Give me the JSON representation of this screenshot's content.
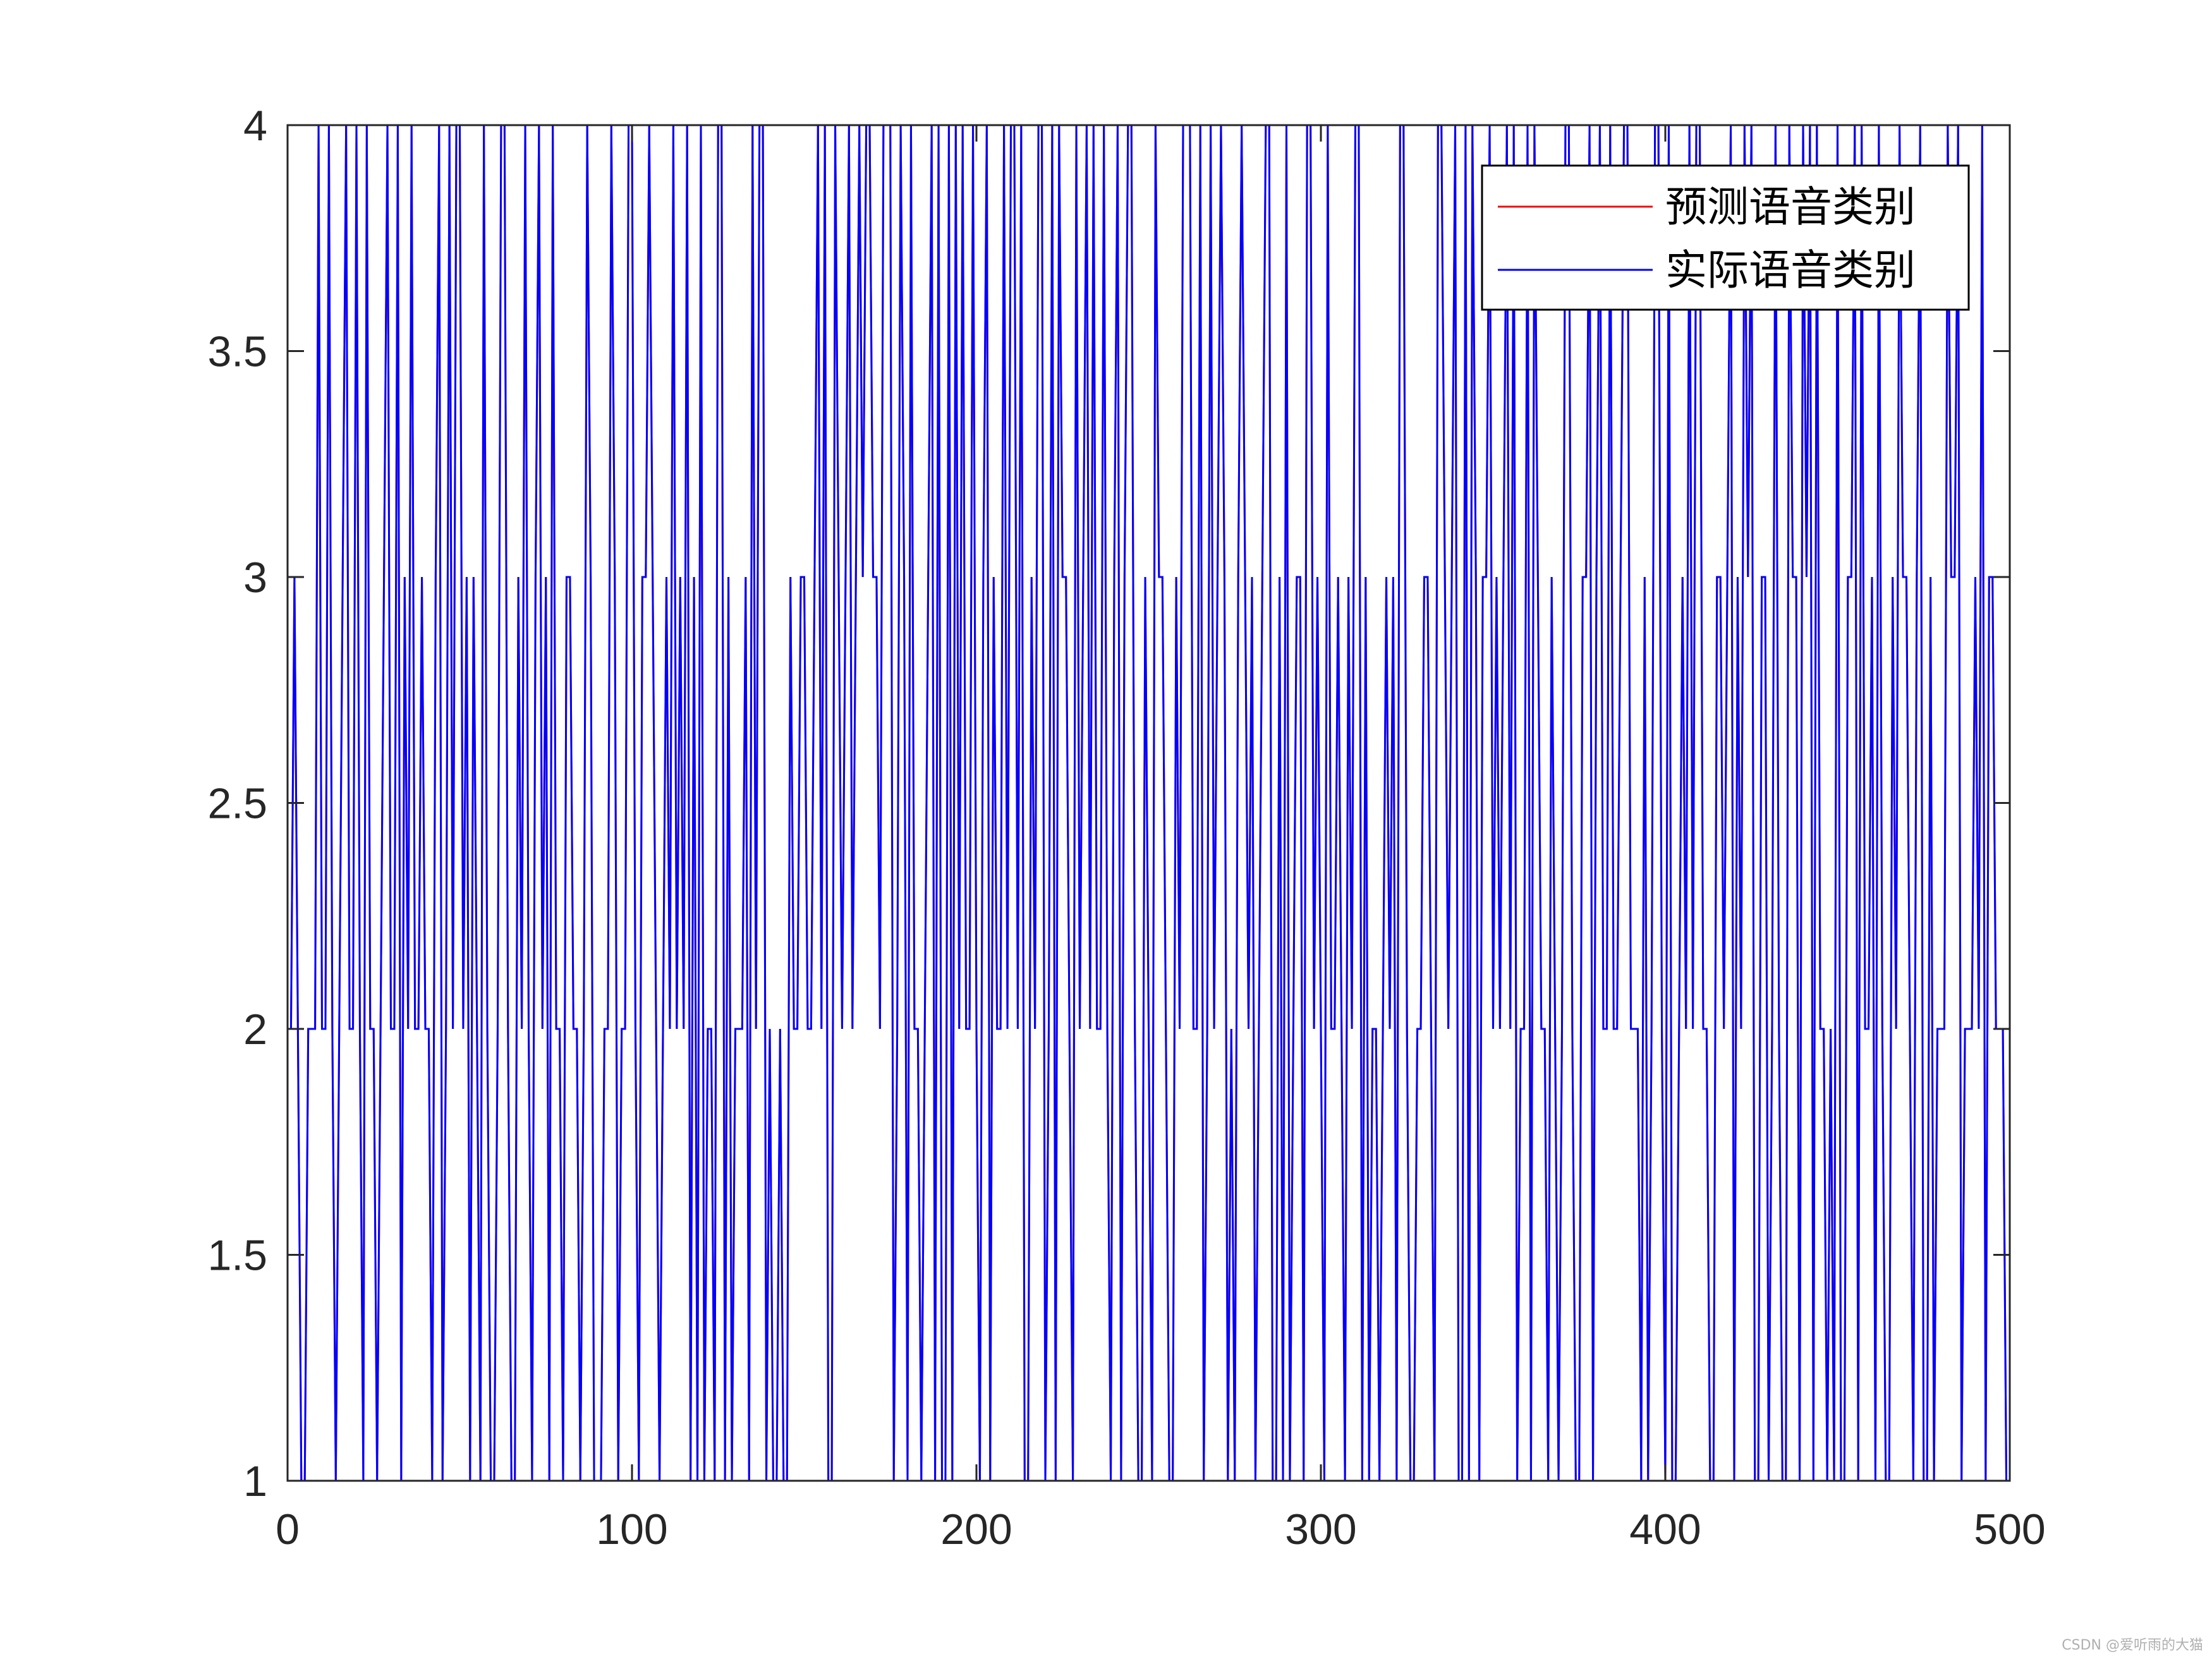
{
  "watermark": "CSDN @爱听雨的大猫",
  "chart_data": {
    "type": "line",
    "x_range": [
      0,
      500
    ],
    "y_range": [
      1,
      4
    ],
    "x_ticks": [
      "0",
      "100",
      "200",
      "300",
      "400",
      "500"
    ],
    "y_ticks": [
      "1",
      "1.5",
      "2",
      "2.5",
      "3",
      "3.5",
      "4"
    ],
    "grid": false,
    "legend_position": "top-right",
    "colors": {
      "predicted": "#ff0000",
      "actual": "#0000ff",
      "axes": "#262626"
    },
    "series": [
      {
        "name": "预测语音类别",
        "color": "#ff0000",
        "values": [
          2,
          3,
          2,
          1,
          1,
          2,
          2,
          2,
          4,
          2,
          2,
          4,
          2,
          1,
          2,
          3,
          4,
          2,
          2,
          4,
          2,
          1,
          4,
          2,
          2,
          1,
          2,
          3,
          4,
          2,
          2,
          4,
          1,
          3,
          2,
          4,
          2,
          2,
          3,
          2,
          2,
          1,
          3,
          4,
          1,
          2,
          4,
          2,
          4,
          4,
          2,
          3,
          1,
          3,
          2,
          1,
          4,
          2,
          1,
          1,
          2,
          4,
          4,
          2,
          1,
          1,
          3,
          2,
          4,
          2,
          1,
          3,
          4,
          2,
          3,
          1,
          4,
          2,
          2,
          1,
          3,
          3,
          2,
          2,
          1,
          2,
          4,
          3,
          1,
          1,
          1,
          2,
          2,
          4,
          3,
          1,
          2,
          2,
          4,
          4,
          2,
          1,
          3,
          3,
          4,
          3,
          2,
          1,
          2,
          3,
          2,
          4,
          2,
          3,
          2,
          4,
          1,
          3,
          1,
          4,
          1,
          2,
          2,
          1,
          4,
          4,
          1,
          3,
          1,
          2,
          2,
          2,
          3,
          1,
          4,
          2,
          4,
          4,
          1,
          2,
          1,
          1,
          2,
          1,
          1,
          3,
          2,
          2,
          3,
          3,
          2,
          2,
          3,
          4,
          2,
          4,
          1,
          1,
          4,
          3,
          2,
          3,
          4,
          2,
          3,
          4,
          3,
          4,
          4,
          3,
          3,
          2,
          4,
          4,
          4,
          1,
          2,
          4,
          3,
          1,
          4,
          2,
          2,
          1,
          2,
          3,
          4,
          1,
          4,
          1,
          1,
          4,
          1,
          4,
          2,
          4,
          2,
          2,
          4,
          2,
          1,
          3,
          4,
          1,
          3,
          2,
          2,
          4,
          2,
          4,
          4,
          2,
          4,
          1,
          1,
          3,
          2,
          4,
          4,
          1,
          2,
          4,
          1,
          4,
          3,
          3,
          2,
          1,
          4,
          2,
          3,
          4,
          2,
          4,
          2,
          2,
          4,
          2,
          1,
          3,
          4,
          1,
          3,
          4,
          4,
          2,
          1,
          1,
          3,
          2,
          1,
          4,
          3,
          3,
          2,
          1,
          1,
          3,
          2,
          4,
          4,
          4,
          2,
          2,
          4,
          1,
          2,
          4,
          2,
          3,
          4,
          3,
          1,
          2,
          1,
          3,
          4,
          3,
          2,
          3,
          1,
          2,
          3,
          4,
          4,
          1,
          1,
          3,
          1,
          4,
          1,
          2,
          3,
          3,
          1,
          4,
          4,
          2,
          3,
          2,
          1,
          4,
          2,
          2,
          3,
          2,
          1,
          3,
          2,
          4,
          4,
          1,
          3,
          1,
          2,
          2,
          1,
          2,
          3,
          2,
          3,
          1,
          4,
          4,
          2,
          1,
          1,
          2,
          2,
          3,
          3,
          2,
          1,
          4,
          4,
          3,
          2,
          3,
          4,
          1,
          1,
          4,
          1,
          4,
          3,
          1,
          3,
          3,
          4,
          2,
          3,
          2,
          3,
          4,
          2,
          4,
          1,
          2,
          2,
          4,
          1,
          4,
          3,
          2,
          2,
          1,
          3,
          2,
          1,
          2,
          4,
          4,
          2,
          1,
          1,
          3,
          3,
          4,
          1,
          3,
          4,
          2,
          2,
          4,
          2,
          2,
          3,
          4,
          4,
          2,
          2,
          2,
          1,
          3,
          1,
          2,
          4,
          4,
          2,
          1,
          4,
          1,
          1,
          2,
          3,
          2,
          4,
          2,
          4,
          4,
          2,
          2,
          1,
          1,
          3,
          3,
          2,
          3,
          4,
          1,
          3,
          2,
          4,
          3,
          4,
          1,
          1,
          3,
          3,
          1,
          2,
          4,
          2,
          1,
          1,
          4,
          3,
          3,
          1,
          4,
          3,
          4,
          1,
          4,
          2,
          2,
          1,
          2,
          1,
          4,
          1,
          1,
          3,
          3,
          4,
          1,
          4,
          2,
          2,
          3,
          1,
          4,
          2,
          1,
          1,
          3,
          2,
          4,
          3,
          3,
          2,
          1,
          3,
          4,
          1,
          1,
          3,
          1,
          2,
          2,
          2,
          4,
          3,
          3,
          4,
          1,
          2,
          2,
          2,
          3,
          2,
          4,
          1,
          3,
          3,
          2,
          2,
          2,
          1
        ]
      },
      {
        "name": "实际语音类别",
        "color": "#0000ff",
        "values": [
          2,
          3,
          2,
          1,
          1,
          2,
          2,
          2,
          4,
          2,
          2,
          4,
          2,
          1,
          2,
          3,
          4,
          2,
          2,
          4,
          2,
          1,
          4,
          2,
          2,
          1,
          2,
          3,
          4,
          2,
          2,
          4,
          1,
          3,
          2,
          4,
          2,
          2,
          3,
          2,
          2,
          1,
          3,
          4,
          1,
          2,
          4,
          2,
          4,
          4,
          2,
          3,
          1,
          3,
          2,
          1,
          4,
          2,
          1,
          1,
          2,
          4,
          4,
          2,
          1,
          1,
          3,
          2,
          4,
          2,
          1,
          3,
          4,
          2,
          3,
          1,
          4,
          2,
          2,
          1,
          3,
          3,
          2,
          2,
          1,
          2,
          4,
          3,
          1,
          1,
          1,
          2,
          2,
          4,
          3,
          1,
          2,
          2,
          4,
          4,
          2,
          1,
          3,
          3,
          4,
          3,
          2,
          1,
          2,
          3,
          2,
          4,
          2,
          3,
          2,
          4,
          1,
          3,
          1,
          4,
          1,
          2,
          2,
          1,
          4,
          4,
          1,
          3,
          1,
          2,
          2,
          2,
          3,
          1,
          4,
          2,
          4,
          4,
          1,
          2,
          1,
          1,
          2,
          1,
          1,
          3,
          2,
          2,
          3,
          3,
          2,
          2,
          3,
          4,
          2,
          4,
          1,
          1,
          4,
          3,
          2,
          3,
          4,
          2,
          3,
          4,
          3,
          4,
          4,
          3,
          3,
          2,
          4,
          4,
          4,
          1,
          2,
          4,
          3,
          1,
          4,
          2,
          2,
          1,
          2,
          3,
          4,
          1,
          4,
          1,
          1,
          4,
          1,
          4,
          2,
          4,
          2,
          2,
          4,
          2,
          1,
          3,
          4,
          1,
          3,
          2,
          2,
          4,
          2,
          4,
          4,
          2,
          4,
          1,
          1,
          3,
          2,
          4,
          4,
          1,
          2,
          4,
          1,
          4,
          3,
          3,
          2,
          1,
          4,
          2,
          3,
          4,
          2,
          4,
          2,
          2,
          4,
          2,
          1,
          3,
          4,
          1,
          3,
          4,
          4,
          2,
          1,
          1,
          3,
          2,
          1,
          4,
          3,
          3,
          2,
          1,
          1,
          3,
          2,
          4,
          4,
          4,
          2,
          2,
          4,
          1,
          2,
          4,
          2,
          3,
          4,
          3,
          1,
          2,
          1,
          3,
          4,
          3,
          2,
          3,
          1,
          2,
          3,
          4,
          4,
          1,
          1,
          3,
          1,
          4,
          1,
          2,
          3,
          3,
          1,
          4,
          4,
          2,
          3,
          2,
          1,
          4,
          2,
          2,
          3,
          2,
          1,
          3,
          2,
          4,
          4,
          1,
          3,
          1,
          2,
          2,
          1,
          2,
          3,
          2,
          3,
          1,
          4,
          4,
          2,
          1,
          1,
          2,
          2,
          3,
          3,
          2,
          1,
          4,
          4,
          3,
          2,
          3,
          4,
          1,
          1,
          4,
          1,
          4,
          3,
          1,
          3,
          3,
          4,
          2,
          3,
          2,
          3,
          4,
          2,
          4,
          1,
          2,
          2,
          4,
          1,
          4,
          3,
          2,
          2,
          1,
          3,
          2,
          1,
          2,
          4,
          4,
          2,
          1,
          1,
          3,
          3,
          4,
          1,
          3,
          4,
          2,
          2,
          4,
          2,
          2,
          3,
          4,
          4,
          2,
          2,
          2,
          1,
          3,
          1,
          2,
          4,
          4,
          2,
          1,
          4,
          1,
          1,
          2,
          3,
          2,
          4,
          2,
          4,
          4,
          2,
          2,
          1,
          1,
          3,
          3,
          2,
          3,
          4,
          1,
          3,
          2,
          4,
          3,
          4,
          1,
          1,
          3,
          3,
          1,
          2,
          4,
          2,
          1,
          1,
          4,
          3,
          3,
          1,
          4,
          3,
          4,
          1,
          4,
          2,
          2,
          1,
          2,
          1,
          4,
          1,
          1,
          3,
          3,
          4,
          1,
          4,
          2,
          2,
          3,
          1,
          4,
          2,
          1,
          1,
          3,
          2,
          4,
          3,
          3,
          2,
          1,
          3,
          4,
          1,
          1,
          3,
          1,
          2,
          2,
          2,
          4,
          3,
          3,
          4,
          1,
          2,
          2,
          2,
          3,
          2,
          4,
          1,
          3,
          3,
          2,
          2,
          2,
          1
        ]
      }
    ]
  }
}
